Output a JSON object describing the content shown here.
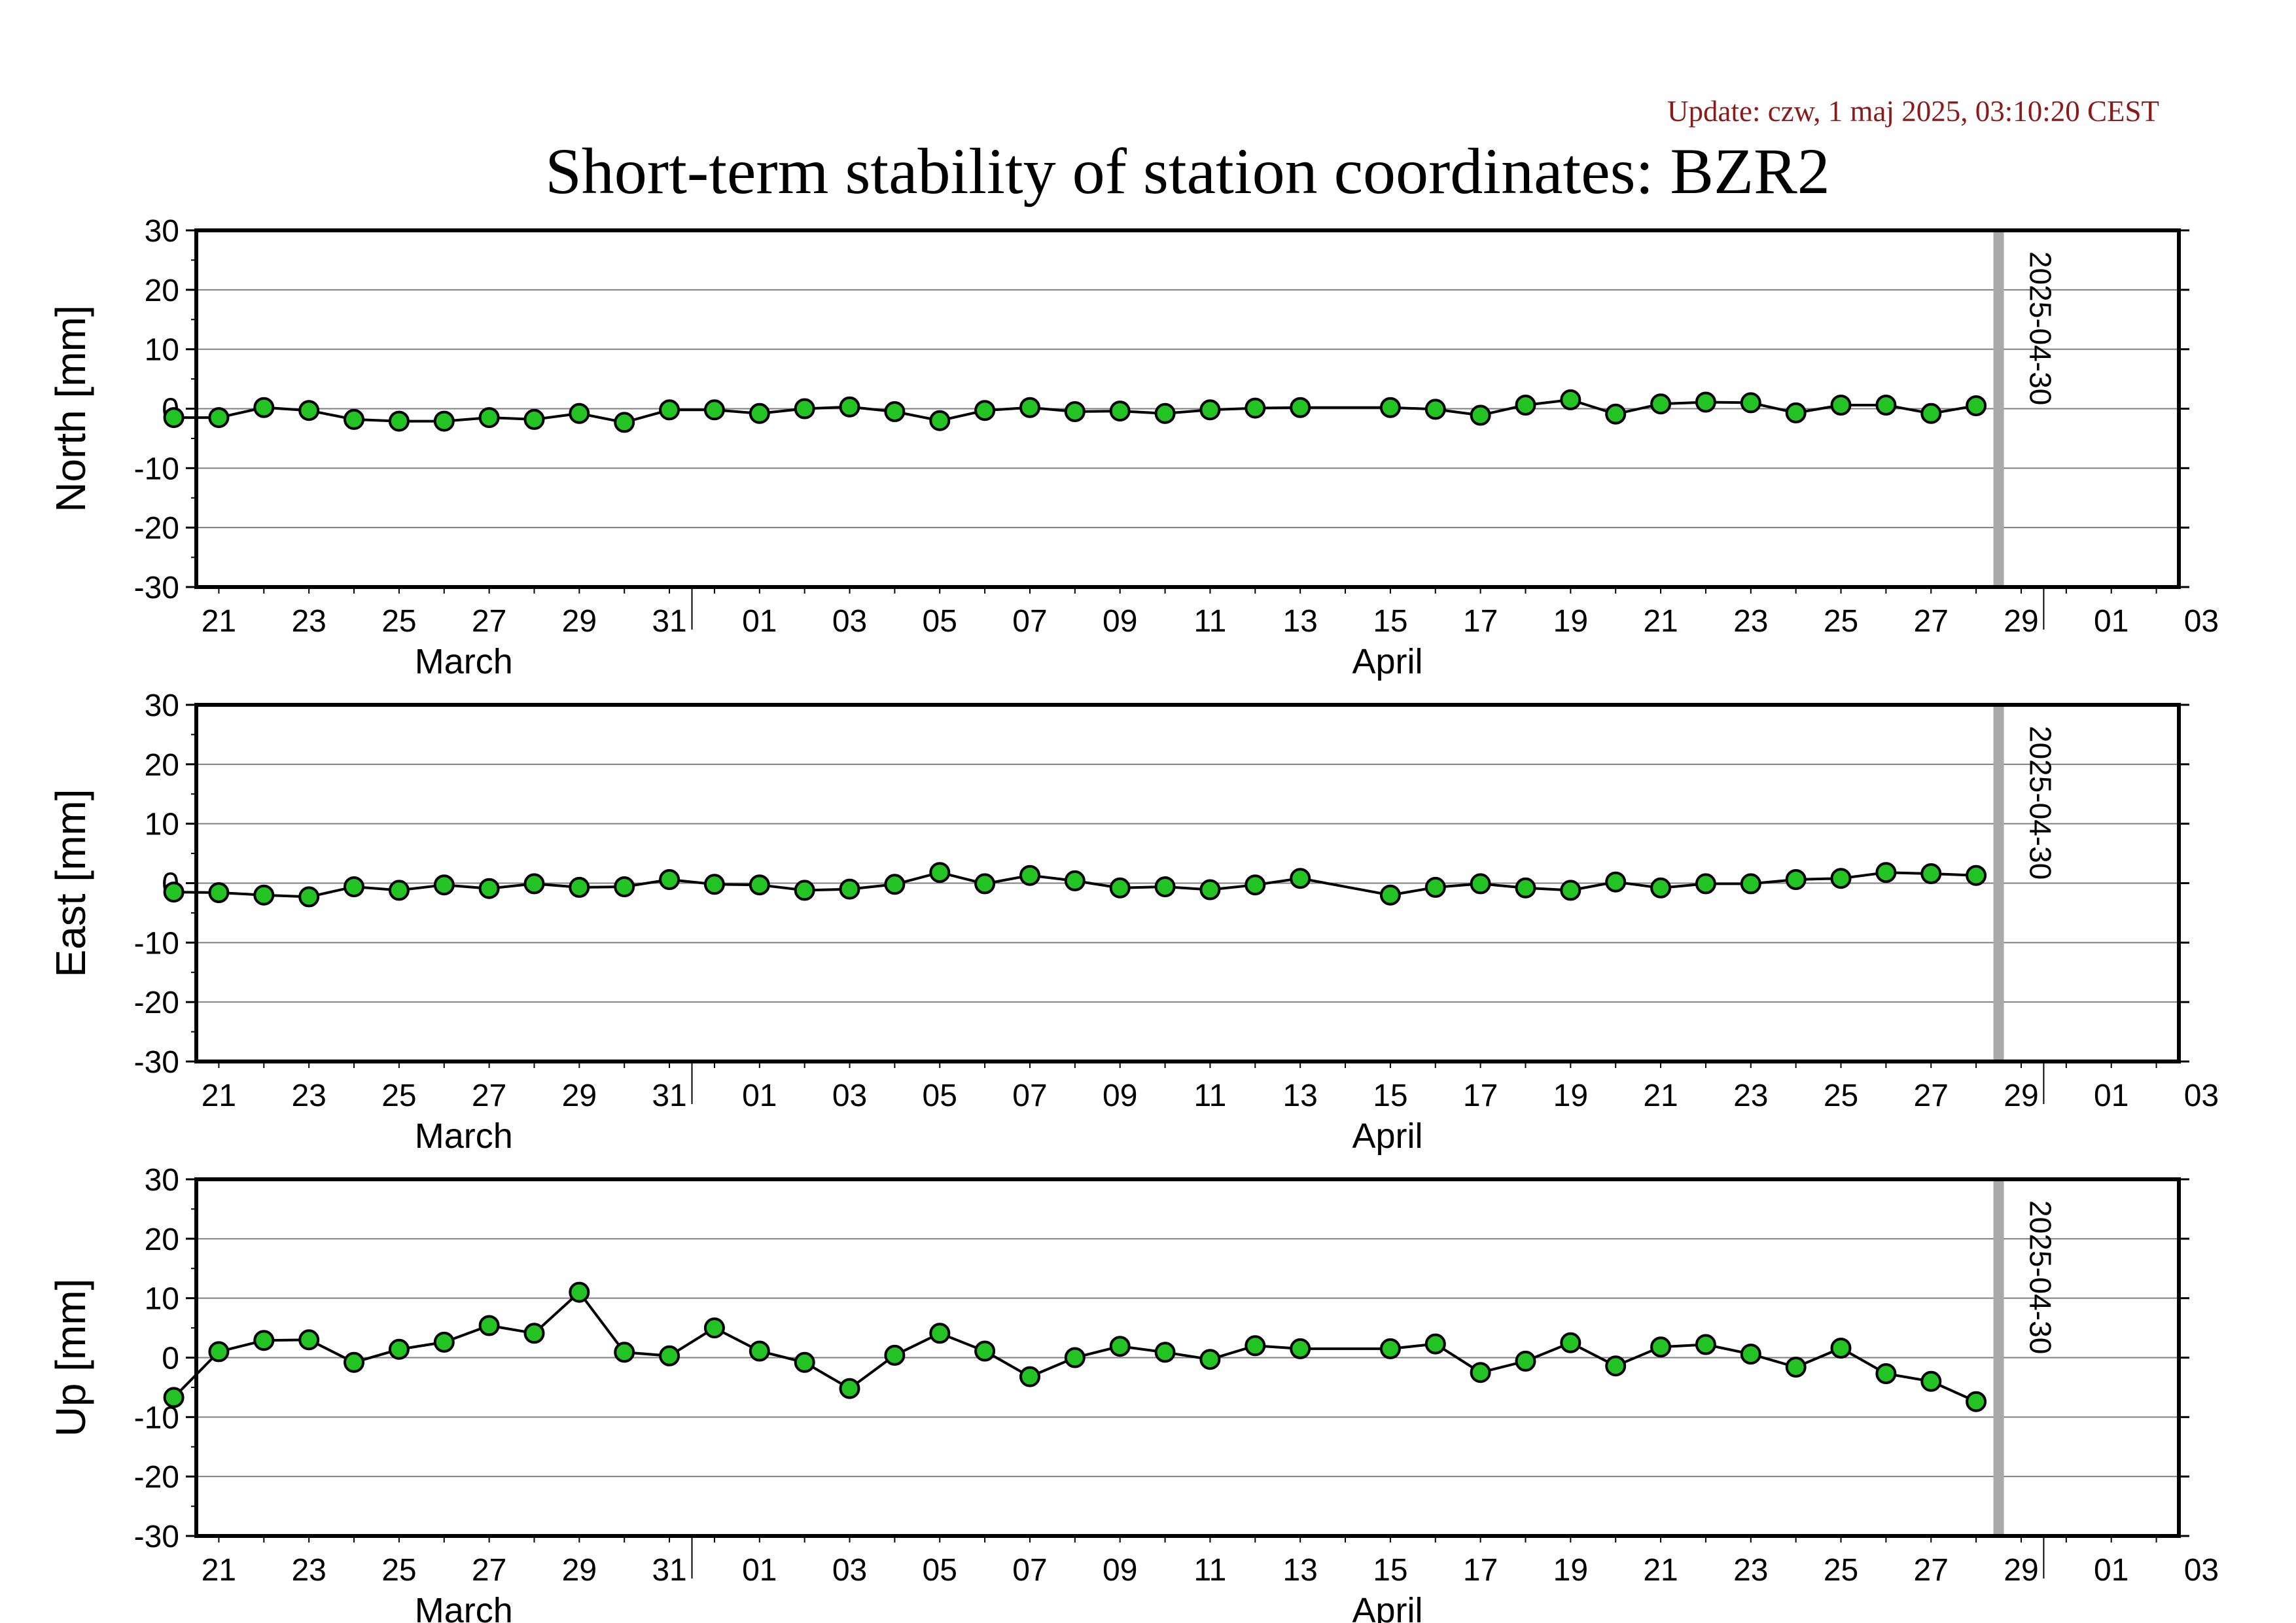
{
  "update_text": "Update: czw, 1 maj 2025, 03:10:20 CEST",
  "title": "Short-term stability of station coordinates: BZR2",
  "colors": {
    "marker_fill": "#22c322",
    "marker_stroke": "#000000",
    "line": "#000000",
    "grid": "#7f7f7f",
    "today_bar": "#a9a9a9",
    "update_text": "#8b1a1a"
  },
  "chart_data": [
    {
      "type": "line",
      "title": "",
      "xlabel": "",
      "ylabel": "North [mm]",
      "ylim": [
        -30,
        30
      ],
      "yticks": [
        30,
        20,
        10,
        0,
        -10,
        -20,
        -30
      ],
      "xlim": [
        "2025-03-20",
        "2025-05-03"
      ],
      "x_tick_labels": [
        "21",
        "23",
        "25",
        "27",
        "29",
        "31",
        "01",
        "03",
        "05",
        "07",
        "09",
        "11",
        "13",
        "15",
        "17",
        "19",
        "21",
        "23",
        "25",
        "27",
        "29",
        "01",
        "03"
      ],
      "month_labels": [
        "March",
        "April"
      ],
      "vertical_marker": "2025-04-30",
      "grid": true,
      "legend": "none",
      "series": [
        {
          "x": [
            "2025-03-20",
            "2025-03-21",
            "2025-03-22",
            "2025-03-23",
            "2025-03-24",
            "2025-03-25",
            "2025-03-26",
            "2025-03-27",
            "2025-03-28",
            "2025-03-29",
            "2025-03-30",
            "2025-03-31",
            "2025-04-01",
            "2025-04-02",
            "2025-04-03",
            "2025-04-04",
            "2025-04-05",
            "2025-04-06",
            "2025-04-07",
            "2025-04-08",
            "2025-04-09",
            "2025-04-10",
            "2025-04-11",
            "2025-04-12",
            "2025-04-13",
            "2025-04-14",
            "2025-04-16",
            "2025-04-17",
            "2025-04-18",
            "2025-04-19",
            "2025-04-20",
            "2025-04-21",
            "2025-04-22",
            "2025-04-23",
            "2025-04-24",
            "2025-04-25",
            "2025-04-26",
            "2025-04-27",
            "2025-04-28",
            "2025-04-29"
          ],
          "values": [
            -1.5,
            -1.5,
            0.2,
            -0.3,
            -1.8,
            -2.1,
            -2.1,
            -1.5,
            -1.8,
            -0.8,
            -2.3,
            -0.2,
            -0.2,
            -0.8,
            0.0,
            0.3,
            -0.5,
            -2.0,
            -0.3,
            0.2,
            -0.5,
            -0.4,
            -0.8,
            -0.2,
            0.1,
            0.2,
            0.2,
            -0.1,
            -1.1,
            0.6,
            1.5,
            -0.9,
            0.8,
            1.1,
            1.0,
            -0.7,
            0.6,
            0.6,
            -0.8,
            0.5
          ]
        }
      ]
    },
    {
      "type": "line",
      "title": "",
      "xlabel": "",
      "ylabel": "East [mm]",
      "ylim": [
        -30,
        30
      ],
      "yticks": [
        30,
        20,
        10,
        0,
        -10,
        -20,
        -30
      ],
      "xlim": [
        "2025-03-20",
        "2025-05-03"
      ],
      "x_tick_labels": [
        "21",
        "23",
        "25",
        "27",
        "29",
        "31",
        "01",
        "03",
        "05",
        "07",
        "09",
        "11",
        "13",
        "15",
        "17",
        "19",
        "21",
        "23",
        "25",
        "27",
        "29",
        "01",
        "03"
      ],
      "month_labels": [
        "March",
        "April"
      ],
      "vertical_marker": "2025-04-30",
      "grid": true,
      "legend": "none",
      "series": [
        {
          "x": [
            "2025-03-20",
            "2025-03-21",
            "2025-03-22",
            "2025-03-23",
            "2025-03-24",
            "2025-03-25",
            "2025-03-26",
            "2025-03-27",
            "2025-03-28",
            "2025-03-29",
            "2025-03-30",
            "2025-03-31",
            "2025-04-01",
            "2025-04-02",
            "2025-04-03",
            "2025-04-04",
            "2025-04-05",
            "2025-04-06",
            "2025-04-07",
            "2025-04-08",
            "2025-04-09",
            "2025-04-10",
            "2025-04-11",
            "2025-04-12",
            "2025-04-13",
            "2025-04-14",
            "2025-04-16",
            "2025-04-17",
            "2025-04-18",
            "2025-04-19",
            "2025-04-20",
            "2025-04-21",
            "2025-04-22",
            "2025-04-23",
            "2025-04-24",
            "2025-04-25",
            "2025-04-26",
            "2025-04-27",
            "2025-04-28",
            "2025-04-29"
          ],
          "values": [
            -1.5,
            -1.6,
            -2.0,
            -2.3,
            -0.6,
            -1.2,
            -0.3,
            -0.9,
            -0.1,
            -0.7,
            -0.6,
            0.6,
            -0.2,
            -0.3,
            -1.2,
            -1.0,
            -0.2,
            1.8,
            -0.1,
            1.3,
            0.4,
            -0.8,
            -0.6,
            -1.1,
            -0.3,
            0.8,
            -2.0,
            -0.7,
            -0.1,
            -0.8,
            -1.2,
            0.2,
            -0.8,
            -0.1,
            -0.1,
            0.6,
            0.8,
            1.8,
            1.6,
            1.3
          ]
        }
      ]
    },
    {
      "type": "line",
      "title": "",
      "xlabel": "",
      "ylabel": "Up [mm]",
      "ylim": [
        -30,
        30
      ],
      "yticks": [
        30,
        20,
        10,
        0,
        -10,
        -20,
        -30
      ],
      "xlim": [
        "2025-03-20",
        "2025-05-03"
      ],
      "x_tick_labels": [
        "21",
        "23",
        "25",
        "27",
        "29",
        "31",
        "01",
        "03",
        "05",
        "07",
        "09",
        "11",
        "13",
        "15",
        "17",
        "19",
        "21",
        "23",
        "25",
        "27",
        "29",
        "01",
        "03"
      ],
      "month_labels": [
        "March",
        "April"
      ],
      "vertical_marker": "2025-04-30",
      "grid": true,
      "legend": "none",
      "series": [
        {
          "x": [
            "2025-03-20",
            "2025-03-21",
            "2025-03-22",
            "2025-03-23",
            "2025-03-24",
            "2025-03-25",
            "2025-03-26",
            "2025-03-27",
            "2025-03-28",
            "2025-03-29",
            "2025-03-30",
            "2025-03-31",
            "2025-04-01",
            "2025-04-02",
            "2025-04-03",
            "2025-04-04",
            "2025-04-05",
            "2025-04-06",
            "2025-04-07",
            "2025-04-08",
            "2025-04-09",
            "2025-04-10",
            "2025-04-11",
            "2025-04-12",
            "2025-04-13",
            "2025-04-14",
            "2025-04-16",
            "2025-04-17",
            "2025-04-18",
            "2025-04-19",
            "2025-04-20",
            "2025-04-21",
            "2025-04-22",
            "2025-04-23",
            "2025-04-24",
            "2025-04-25",
            "2025-04-26",
            "2025-04-27",
            "2025-04-28",
            "2025-04-29"
          ],
          "values": [
            -6.7,
            1.0,
            2.9,
            3.0,
            -0.8,
            1.4,
            2.6,
            5.4,
            4.1,
            11.0,
            0.9,
            0.3,
            5.0,
            1.1,
            -0.8,
            -5.2,
            0.4,
            4.1,
            1.1,
            -3.2,
            0.0,
            1.9,
            0.9,
            -0.3,
            2.0,
            1.5,
            1.5,
            2.3,
            -2.5,
            -0.6,
            2.5,
            -1.4,
            1.8,
            2.2,
            0.6,
            -1.6,
            1.6,
            -2.7,
            -4.0,
            -7.4
          ]
        }
      ]
    }
  ]
}
